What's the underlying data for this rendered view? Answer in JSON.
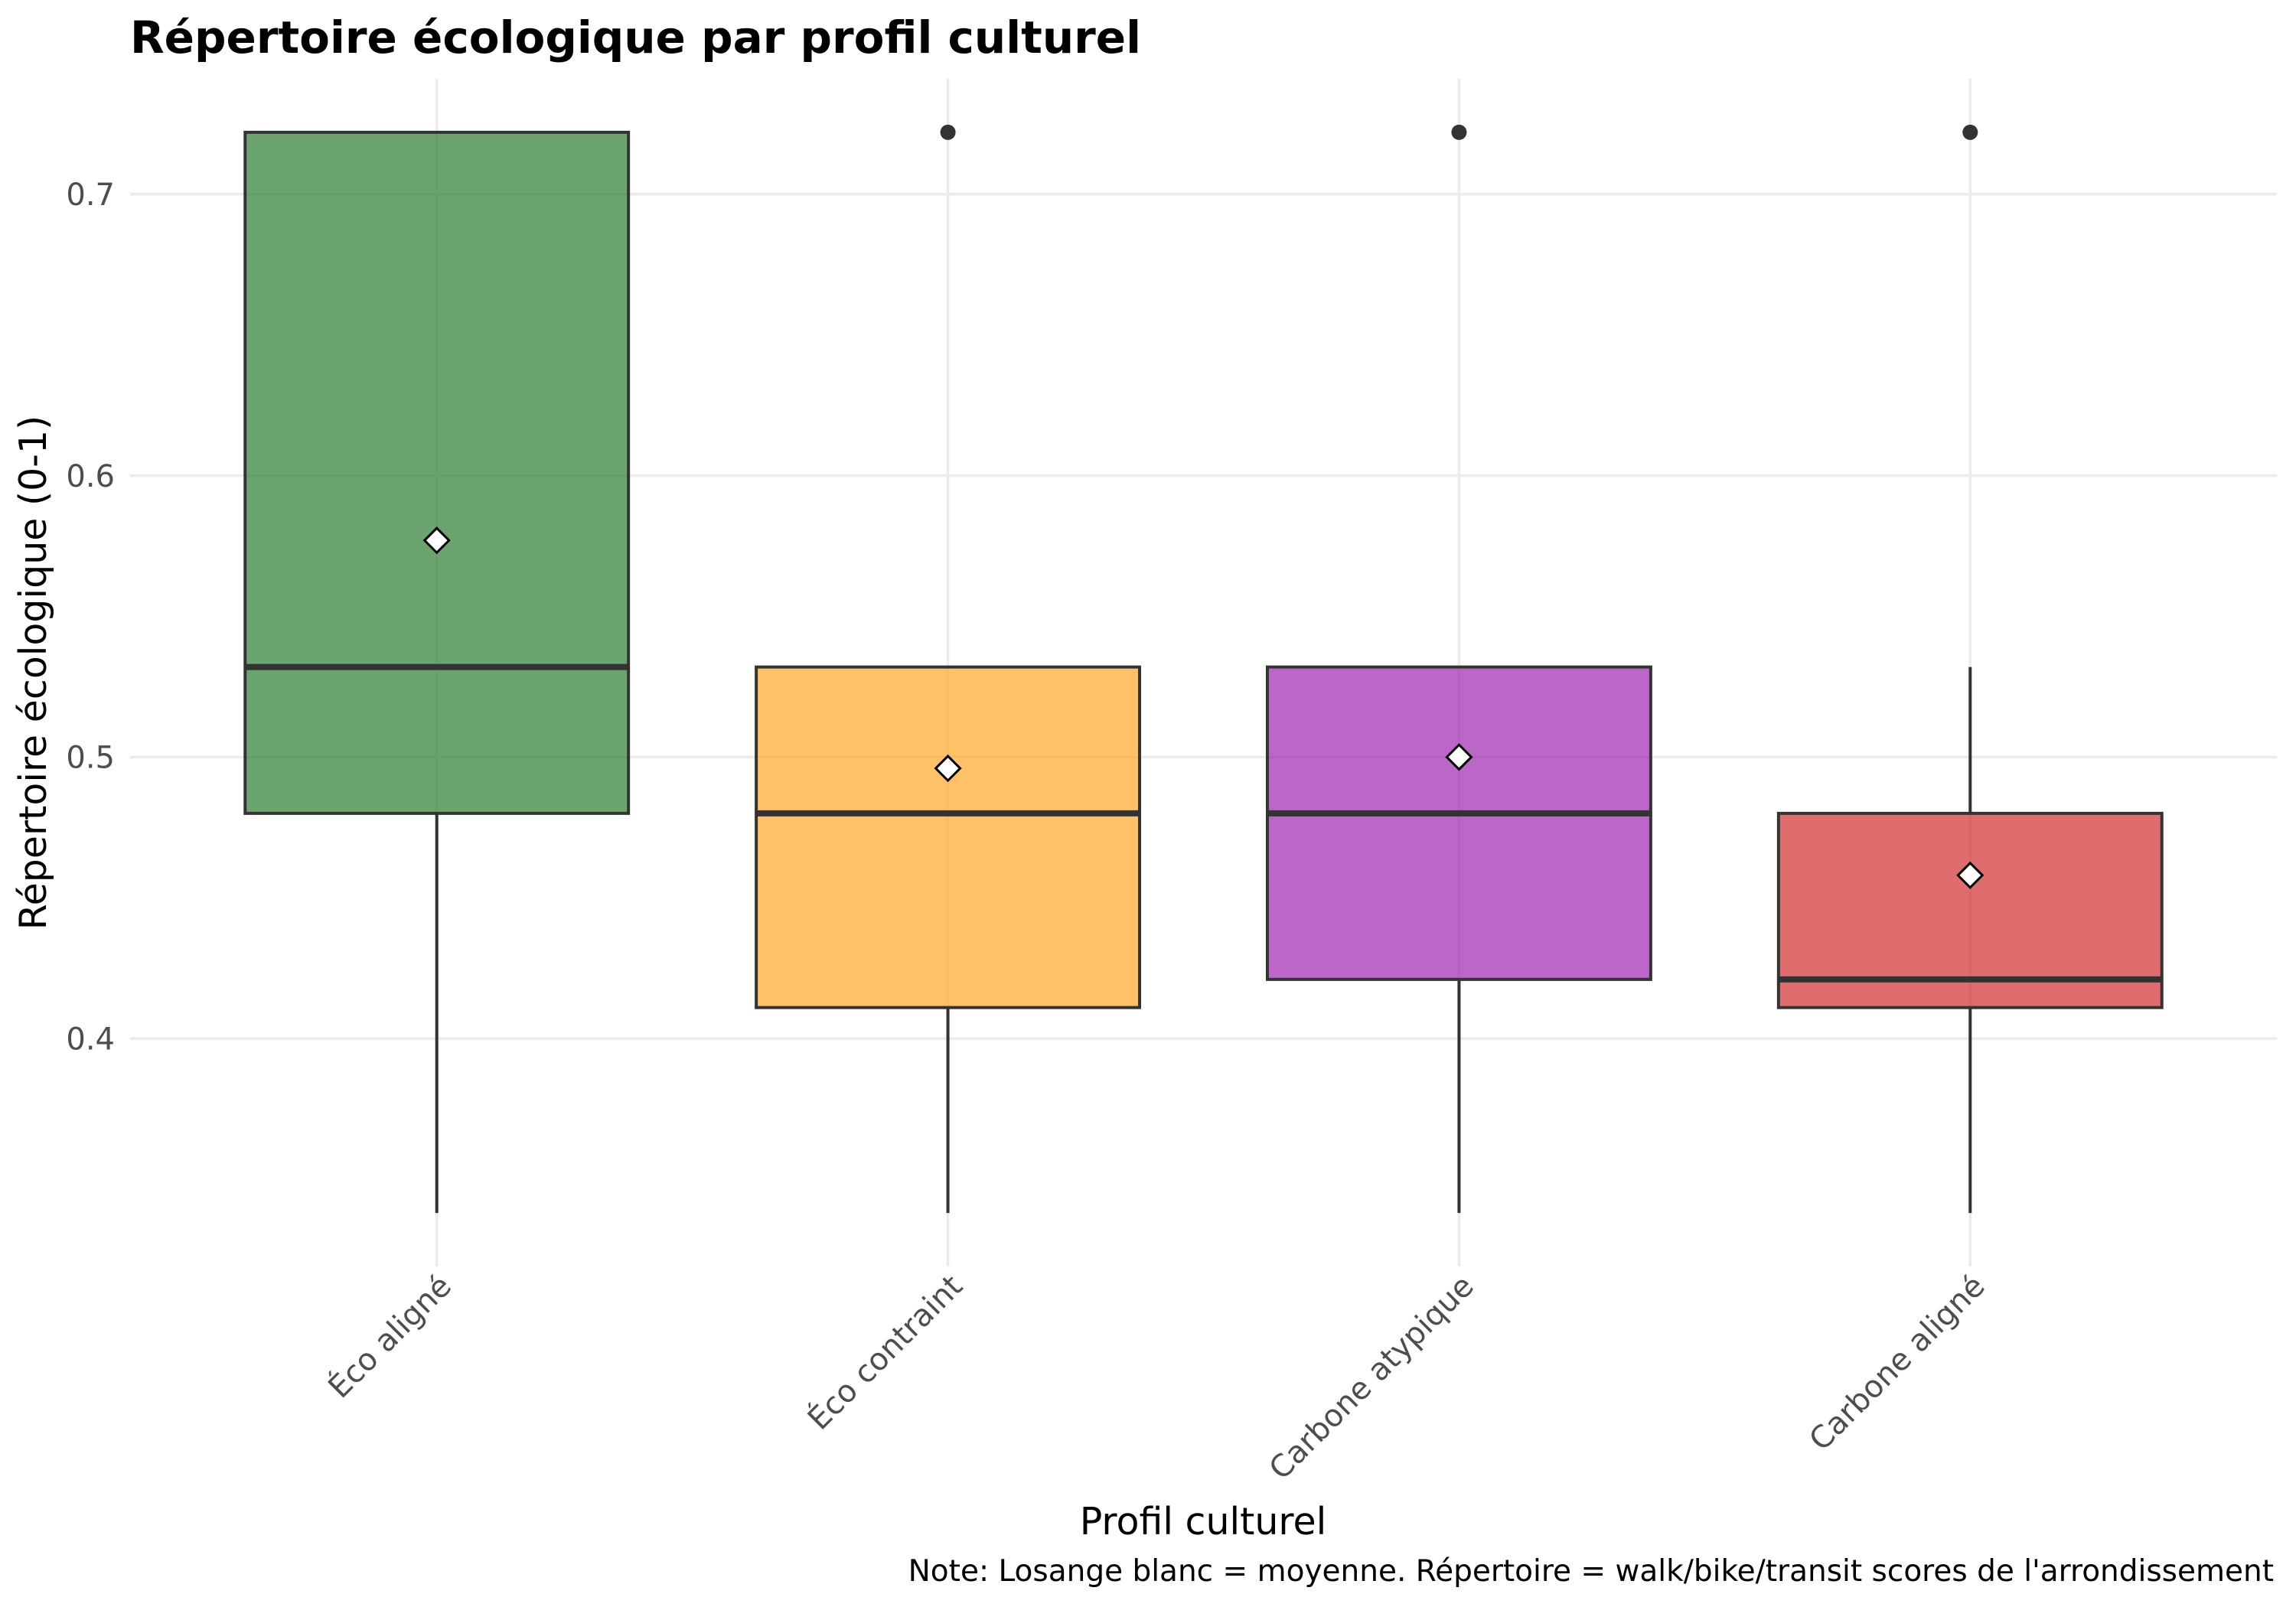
{
  "chart_data": {
    "type": "boxplot",
    "title": "Répertoire écologique par profil culturel",
    "xlabel": "Profil culturel",
    "ylabel": "Répertoire écologique (0-1)",
    "caption": "Note: Losange blanc = moyenne. Répertoire = walk/bike/transit scores de l'arrondissement",
    "categories": [
      "Éco aligné",
      "Éco contraint",
      "Carbone atypique",
      "Carbone aligné"
    ],
    "ylim": [
      0.319,
      0.741
    ],
    "yticks": [
      0.4,
      0.5,
      0.6,
      0.7
    ],
    "ytick_labels": [
      "0.4",
      "0.5",
      "0.6",
      "0.7"
    ],
    "grid": true,
    "fill_opacity": 0.7,
    "colors": {
      "outline": "#333333",
      "grid": "#ebebeb",
      "mean_fill": "#ffffff",
      "mean_stroke": "#000000"
    },
    "boxes": [
      {
        "color": "#2e7d32",
        "min": 0.338,
        "q1": 0.48,
        "median": 0.532,
        "q3": 0.722,
        "max": 0.722,
        "mean": 0.577,
        "outliers": []
      },
      {
        "color": "#ffa726",
        "min": 0.338,
        "q1": 0.411,
        "median": 0.48,
        "q3": 0.532,
        "max": 0.532,
        "mean": 0.496,
        "outliers": [
          0.722
        ]
      },
      {
        "color": "#9c27b0",
        "min": 0.338,
        "q1": 0.421,
        "median": 0.48,
        "q3": 0.532,
        "max": 0.532,
        "mean": 0.5,
        "outliers": [
          0.722
        ]
      },
      {
        "color": "#d32f2f",
        "min": 0.338,
        "q1": 0.411,
        "median": 0.421,
        "q3": 0.48,
        "max": 0.532,
        "mean": 0.458,
        "outliers": [
          0.722
        ]
      }
    ]
  }
}
